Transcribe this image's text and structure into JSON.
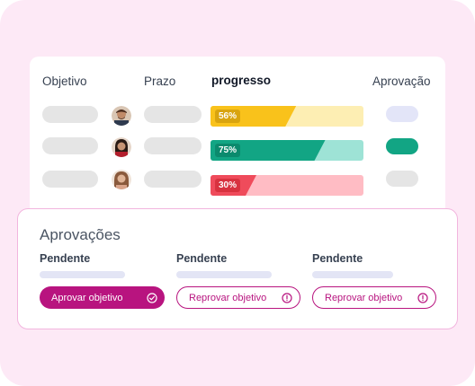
{
  "table": {
    "headers": {
      "objective": "Objetivo",
      "deadline": "Prazo",
      "progress": "progresso",
      "approval": "Aprovação"
    },
    "rows": [
      {
        "progress_label": "56%",
        "progress_value": 0.56,
        "bar_color": "#f9c21b",
        "bar_track": "#fdeeb3",
        "label_bg": "#d9a40f",
        "approval_color": "#e3e5f8"
      },
      {
        "progress_label": "75%",
        "progress_value": 0.75,
        "bar_color": "#12a584",
        "bar_track": "#9ee3d6",
        "label_bg": "#0b8a6d",
        "approval_color": "#12a584"
      },
      {
        "progress_label": "30%",
        "progress_value": 0.3,
        "bar_color": "#ef4b5b",
        "bar_track": "#ffbcc4",
        "label_bg": "#d8323f",
        "approval_color": "#e5e5e5"
      }
    ]
  },
  "approvals": {
    "title": "Aprovações",
    "columns": [
      {
        "status": "Pendente",
        "button_label": "Aprovar objetivo",
        "button_icon": "check-circle-icon"
      },
      {
        "status": "Pendente",
        "button_label": "Reprovar objetivo",
        "button_icon": "alert-circle-icon"
      },
      {
        "status": "Pendente",
        "button_label": "Reprovar objetivo",
        "button_icon": "alert-circle-icon"
      }
    ]
  },
  "colors": {
    "accent": "#b8147f",
    "background": "#fde9f6"
  }
}
